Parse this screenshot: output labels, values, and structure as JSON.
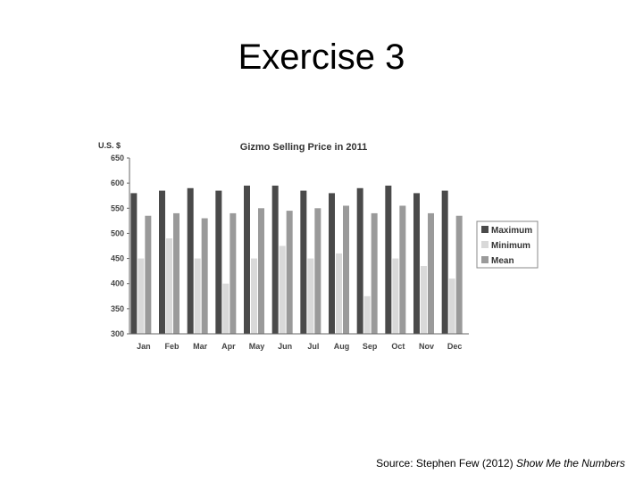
{
  "slide": {
    "title": "Exercise 3",
    "source_prefix": "Source: Stephen Few (2012) ",
    "source_title": "Show Me the Numbers"
  },
  "chart_data": {
    "type": "bar",
    "title": "Gizmo Selling Price in 2011",
    "ylabel": "U.S. $",
    "xlabel": "",
    "ylim": [
      300,
      650
    ],
    "yticks": [
      300,
      350,
      400,
      450,
      500,
      550,
      600,
      650
    ],
    "categories": [
      "Jan",
      "Feb",
      "Mar",
      "Apr",
      "May",
      "Jun",
      "Jul",
      "Aug",
      "Sep",
      "Oct",
      "Nov",
      "Dec"
    ],
    "series": [
      {
        "name": "Maximum",
        "color": "#4a4a4a",
        "values": [
          580,
          585,
          590,
          585,
          595,
          595,
          585,
          580,
          590,
          595,
          580,
          585
        ]
      },
      {
        "name": "Minimum",
        "color": "#d9d9d9",
        "values": [
          450,
          490,
          450,
          400,
          450,
          475,
          450,
          460,
          375,
          450,
          435,
          410
        ]
      },
      {
        "name": "Mean",
        "color": "#9a9a9a",
        "values": [
          535,
          540,
          530,
          540,
          550,
          545,
          550,
          555,
          540,
          555,
          540,
          535
        ]
      }
    ],
    "legend_position": "right",
    "grid": false
  }
}
